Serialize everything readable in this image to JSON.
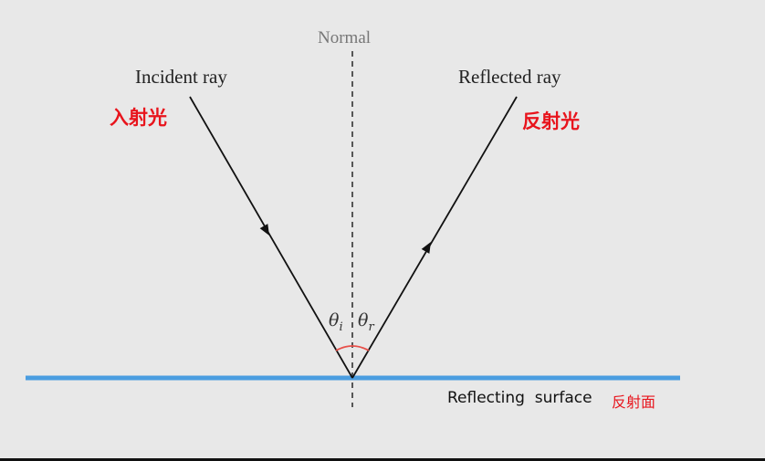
{
  "labels": {
    "normal": "Normal",
    "incident_en": "Incident ray",
    "incident_zh": "入射光",
    "reflected_en": "Reflected ray",
    "reflected_zh": "反射光",
    "theta_i": "θi",
    "theta_r": "θr",
    "surface_en": "Reflecting  surface",
    "surface_zh": "反射面"
  },
  "colors": {
    "surface": "#4a9de0",
    "angle_arc": "#e8504a",
    "chinese_labels": "#e8141c",
    "background": "#e8e8e8"
  }
}
